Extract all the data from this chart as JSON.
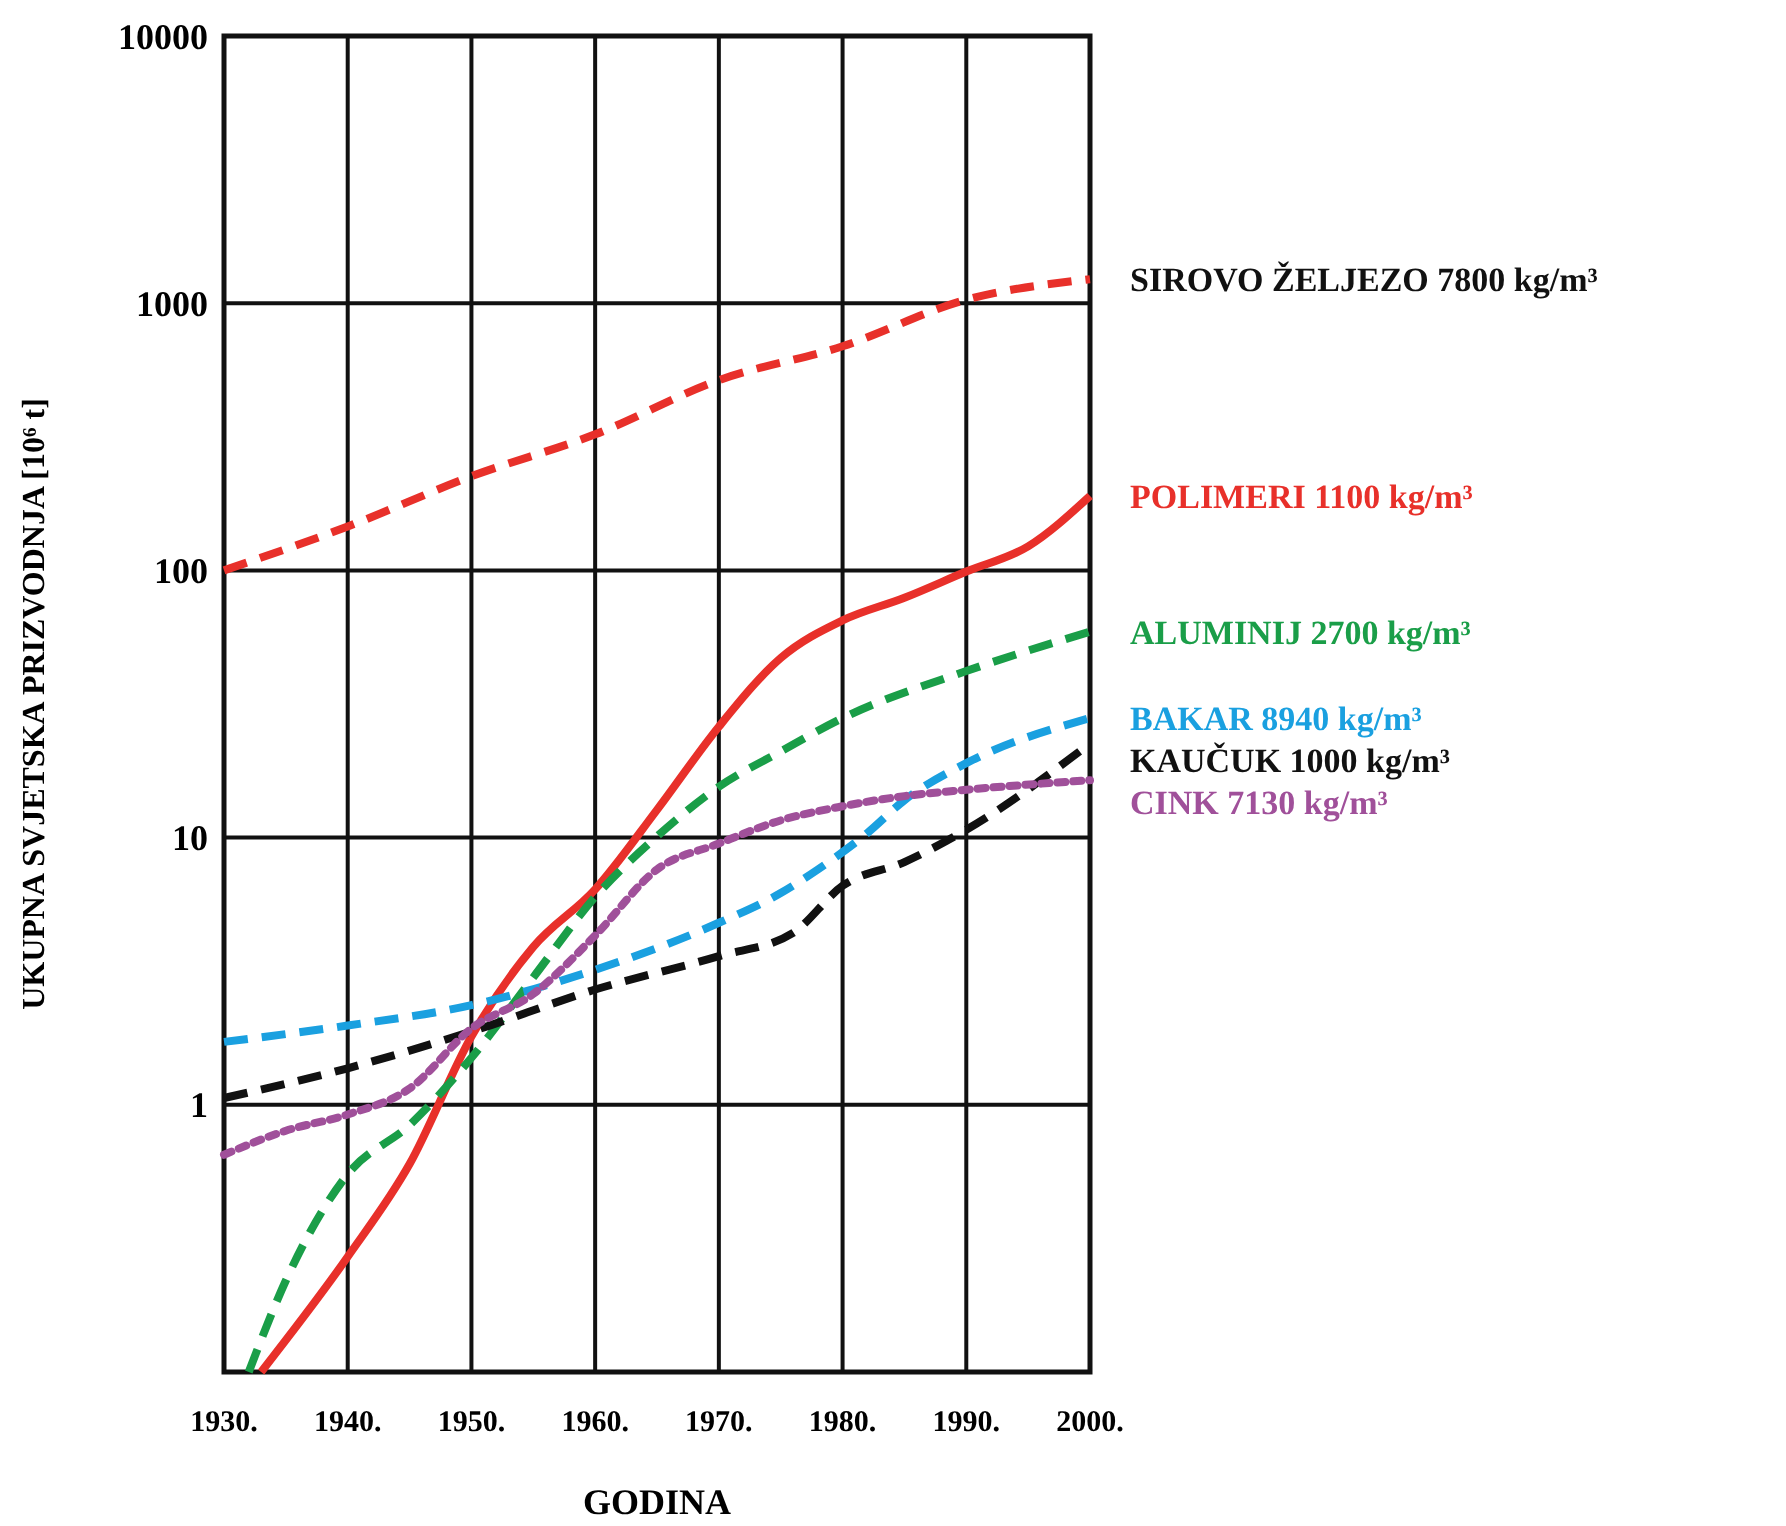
{
  "chart_data": {
    "type": "line",
    "xlabel": "GODINA",
    "ylabel": "UKUPNA SVJETSKA PRIZVODNJA [10⁶ t]",
    "log": true,
    "grid": true,
    "legend": false,
    "xlim": [
      1930,
      2000
    ],
    "ylim": [
      0.1,
      10000
    ],
    "xticks": [
      {
        "value": 1930,
        "label": "1930."
      },
      {
        "value": 1940,
        "label": "1940."
      },
      {
        "value": 1950,
        "label": "1950."
      },
      {
        "value": 1960,
        "label": "1960."
      },
      {
        "value": 1970,
        "label": "1970."
      },
      {
        "value": 1980,
        "label": "1980."
      },
      {
        "value": 1990,
        "label": "1990."
      },
      {
        "value": 2000,
        "label": "2000."
      }
    ],
    "yticks": [
      {
        "value": 0.1,
        "label": null
      },
      1,
      10,
      100,
      1000,
      10000
    ],
    "series": [
      {
        "name": "SIROVO ŽELJEZO 7800 kg/m³",
        "color": "#e8302a",
        "line_style": "dashed",
        "x": [
          1930,
          1940,
          1950,
          1960,
          1970,
          1980,
          1990,
          2000
        ],
        "values": [
          100,
          146,
          225,
          323,
          515,
          690,
          1030,
          1230
        ]
      },
      {
        "name": "POLIMERI 1100 kg/m³",
        "color": "#e8302a",
        "line_style": "solid",
        "x": [
          1933,
          1940,
          1945,
          1950,
          1955,
          1960,
          1965,
          1970,
          1975,
          1980,
          1985,
          1990,
          1995,
          2000
        ],
        "values": [
          0.1,
          0.27,
          0.6,
          1.8,
          3.9,
          6.4,
          12.7,
          26,
          47,
          65,
          79,
          99,
          123,
          190
        ]
      },
      {
        "name": "ALUMINIJ 2700 kg/m³",
        "color": "#1a9e48",
        "line_style": "dashed",
        "x": [
          1932,
          1935,
          1940,
          1945,
          1950,
          1955,
          1960,
          1965,
          1970,
          1975,
          1980,
          1990,
          2000
        ],
        "values": [
          0.1,
          0.22,
          0.55,
          0.84,
          1.5,
          3,
          6,
          10.1,
          15.5,
          21,
          28,
          42,
          59
        ]
      },
      {
        "name": "BAKAR 8940 kg/m³",
        "color": "#1aa0e0",
        "line_style": "dashed",
        "x": [
          1930,
          1940,
          1950,
          1960,
          1970,
          1975,
          1978,
          1982,
          1985,
          1990,
          2000
        ],
        "values": [
          1.72,
          1.98,
          2.36,
          3.2,
          4.8,
          6.2,
          7.6,
          10.4,
          13.8,
          19,
          28
        ]
      },
      {
        "name": "KAUČUK 1000 kg/m³",
        "color": "#111111",
        "line_style": "dashed",
        "x": [
          1930,
          1940,
          1950,
          1960,
          1970,
          1976,
          1980,
          1985,
          1990,
          2000
        ],
        "values": [
          1.06,
          1.37,
          1.88,
          2.7,
          3.6,
          4.4,
          6.6,
          8.1,
          10.7,
          22.5
        ]
      },
      {
        "name": "CINK 7130 kg/m³",
        "color": "#a0509a",
        "line_style": "dotted",
        "x": [
          1930,
          1935,
          1940,
          1945,
          1950,
          1955,
          1960,
          1965,
          1970,
          1975,
          1980,
          1985,
          1990,
          2000
        ],
        "values": [
          0.65,
          0.8,
          0.92,
          1.15,
          1.93,
          2.6,
          4.3,
          7.6,
          9.5,
          11.6,
          13.1,
          14.3,
          15.1,
          16.4
        ]
      }
    ]
  }
}
